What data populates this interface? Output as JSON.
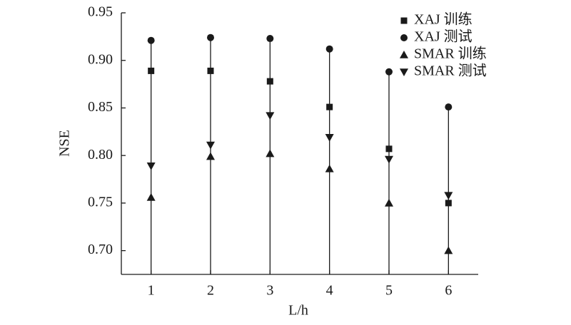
{
  "chart_data": {
    "type": "scatter",
    "y_label": "NSE",
    "x_label": "L/h",
    "x": [
      1,
      2,
      3,
      4,
      5,
      6
    ],
    "series": [
      {
        "name": "XAJ 训练",
        "marker": "square",
        "color": "#1a1a1a",
        "values": [
          0.889,
          0.889,
          0.878,
          0.851,
          0.807,
          0.75
        ]
      },
      {
        "name": "XAJ 测试",
        "marker": "circle",
        "color": "#1a1a1a",
        "values": [
          0.921,
          0.924,
          0.923,
          0.912,
          0.888,
          0.851
        ]
      },
      {
        "name": "SMAR 训练",
        "marker": "triangle-up",
        "color": "#1a1a1a",
        "values": [
          0.756,
          0.799,
          0.802,
          0.786,
          0.75,
          0.7
        ]
      },
      {
        "name": "SMAR 测试",
        "marker": "triangle-down",
        "color": "#1a1a1a",
        "values": [
          0.789,
          0.811,
          0.842,
          0.819,
          0.796,
          0.758
        ]
      }
    ],
    "xlim": [
      0.5,
      6.5
    ],
    "xticks": [
      1,
      2,
      3,
      4,
      5,
      6
    ],
    "ylim": [
      0.675,
      0.95
    ],
    "yticks": [
      {
        "value": 0.7,
        "label": "0.70"
      },
      {
        "value": 0.75,
        "label": "0.75"
      },
      {
        "value": 0.8,
        "label": "0.80"
      },
      {
        "value": 0.85,
        "label": "0.85"
      },
      {
        "value": 0.9,
        "label": "0.90"
      },
      {
        "value": 0.95,
        "label": "0.95"
      }
    ],
    "legend": "upper-right",
    "stems": true
  }
}
